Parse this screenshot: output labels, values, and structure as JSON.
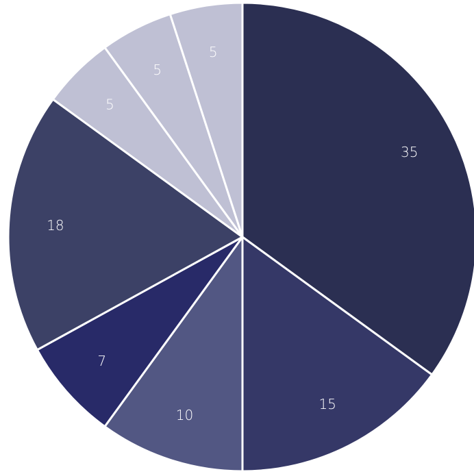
{
  "chart_data": {
    "type": "pie",
    "title": "",
    "start_angle_deg": 0,
    "direction": "clockwise",
    "slices": [
      {
        "value": 35,
        "label": "35",
        "color": "#2b2f52"
      },
      {
        "value": 15,
        "label": "15",
        "color": "#353867"
      },
      {
        "value": 10,
        "label": "10",
        "color": "#525783"
      },
      {
        "value": 7,
        "label": "7",
        "color": "#282a68"
      },
      {
        "value": 18,
        "label": "18",
        "color": "#3c4166"
      },
      {
        "value": 5,
        "label": "5",
        "color": "#bfc0d4"
      },
      {
        "value": 5,
        "label": "5",
        "color": "#bfc0d4"
      },
      {
        "value": 5,
        "label": "5",
        "color": "#bfc0d4"
      }
    ],
    "legend": "none",
    "grid": false
  }
}
